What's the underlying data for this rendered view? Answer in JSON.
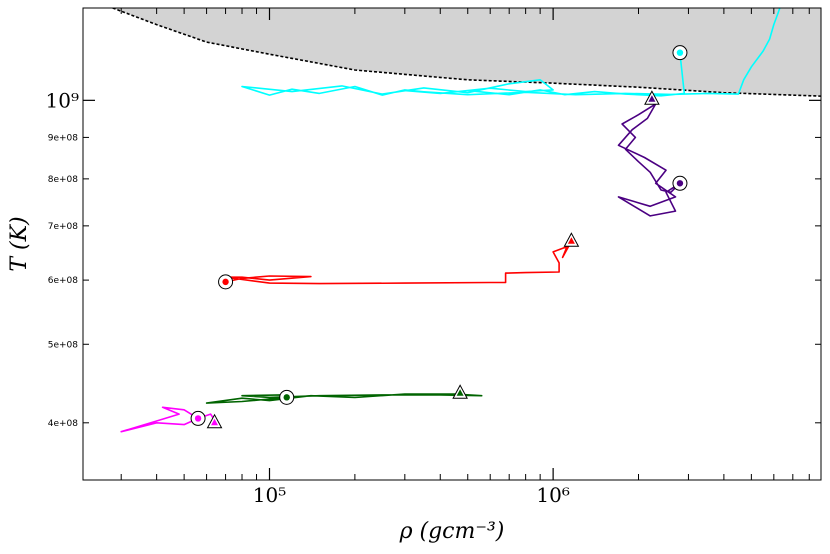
{
  "chart_data": {
    "type": "line",
    "title": "",
    "xlabel": "ρ (gcm⁻³)",
    "ylabel": "T (K)",
    "xscale": "log",
    "yscale": "log",
    "xlim": [
      22000,
      8800000
    ],
    "ylim": [
      340000000,
      1300000000
    ],
    "x_ticks": [
      {
        "value": 100000,
        "label": "10⁵"
      },
      {
        "value": 1000000,
        "label": "10⁶"
      }
    ],
    "y_ticks": [
      {
        "value": 1000000000,
        "label": "10⁹",
        "major": true
      },
      {
        "value": 900000000,
        "label": "9e+08",
        "major": false
      },
      {
        "value": 800000000,
        "label": "8e+08",
        "major": false
      },
      {
        "value": 700000000,
        "label": "7e+08",
        "major": false
      },
      {
        "value": 600000000,
        "label": "6e+08",
        "major": false
      },
      {
        "value": 500000000,
        "label": "5e+08",
        "major": false
      },
      {
        "value": 400000000,
        "label": "4e+08",
        "major": false
      }
    ],
    "grid": false,
    "shaded_region": {
      "color": "#d3d3d3",
      "boundary": [
        [
          28000,
          1300000000
        ],
        [
          40000,
          1240000000
        ],
        [
          60000,
          1180000000
        ],
        [
          100000,
          1140000000
        ],
        [
          200000,
          1090000000
        ],
        [
          500000,
          1060000000
        ],
        [
          1000000,
          1050000000
        ],
        [
          2000000,
          1038000000
        ],
        [
          4000000,
          1022000000
        ],
        [
          8800000,
          1012000000
        ]
      ]
    },
    "series": [
      {
        "color": "#00ffff",
        "path": [
          [
            2800000,
            1145000000
          ],
          [
            2900000,
            1020000000
          ],
          [
            2400000,
            1013000000
          ],
          [
            1800000,
            1018000000
          ],
          [
            1400000,
            1025000000
          ],
          [
            1100000,
            1016000000
          ],
          [
            900000,
            1030000000
          ],
          [
            700000,
            1016000000
          ],
          [
            500000,
            1028000000
          ],
          [
            400000,
            1020000000
          ],
          [
            300000,
            1030000000
          ],
          [
            250000,
            1015000000
          ],
          [
            200000,
            1040000000
          ],
          [
            150000,
            1020000000
          ],
          [
            120000,
            1032000000
          ],
          [
            100000,
            1015000000
          ],
          [
            80000,
            1040000000
          ],
          [
            120000,
            1025000000
          ],
          [
            180000,
            1042000000
          ],
          [
            250000,
            1018000000
          ],
          [
            350000,
            1036000000
          ],
          [
            500000,
            1022000000
          ],
          [
            700000,
            1048000000
          ],
          [
            900000,
            1060000000
          ],
          [
            1000000,
            1030000000
          ],
          [
            800000,
            1025000000
          ],
          [
            600000,
            1035000000
          ],
          [
            400000,
            1020000000
          ],
          [
            300000,
            1028000000
          ],
          [
            500000,
            1016000000
          ],
          [
            800000,
            1023000000
          ],
          [
            1200000,
            1016000000
          ],
          [
            1800000,
            1020000000
          ],
          [
            2600000,
            1017000000
          ],
          [
            3500000,
            1020000000
          ],
          [
            4500000,
            1018000000
          ],
          [
            4700000,
            1060000000
          ],
          [
            5000000,
            1100000000
          ],
          [
            5500000,
            1150000000
          ],
          [
            5800000,
            1190000000
          ],
          [
            6000000,
            1240000000
          ],
          [
            6200000,
            1280000000
          ],
          [
            6300000,
            1300000000
          ]
        ],
        "start_marker": [
          2800000,
          1145000000
        ],
        "end_marker": null
      },
      {
        "color": "#4b0082",
        "path": [
          [
            2800000,
            790000000
          ],
          [
            2600000,
            770000000
          ],
          [
            2400000,
            775000000
          ],
          [
            2200000,
            815000000
          ],
          [
            2000000,
            840000000
          ],
          [
            1800000,
            870000000
          ],
          [
            1950000,
            900000000
          ],
          [
            1750000,
            935000000
          ],
          [
            2000000,
            960000000
          ],
          [
            2300000,
            990000000
          ],
          [
            2150000,
            950000000
          ],
          [
            1900000,
            920000000
          ],
          [
            1700000,
            880000000
          ],
          [
            2100000,
            850000000
          ],
          [
            2500000,
            820000000
          ],
          [
            2300000,
            790000000
          ],
          [
            2700000,
            760000000
          ],
          [
            2200000,
            740000000
          ],
          [
            1700000,
            760000000
          ],
          [
            2200000,
            720000000
          ],
          [
            2700000,
            730000000
          ],
          [
            2500000,
            770000000
          ],
          [
            2800000,
            790000000
          ]
        ],
        "start_marker": [
          2800000,
          790000000
        ],
        "end_marker": [
          2230000,
          1003000000
        ]
      },
      {
        "color": "#ff0000",
        "path": [
          [
            70000,
            597000000
          ],
          [
            80000,
            603000000
          ],
          [
            100000,
            607000000
          ],
          [
            140000,
            606000000
          ],
          [
            100000,
            600000000
          ],
          [
            80000,
            605000000
          ],
          [
            70000,
            605000000
          ],
          [
            100000,
            595000000
          ],
          [
            150000,
            594000000
          ],
          [
            300000,
            595000000
          ],
          [
            600000,
            596000000
          ],
          [
            680000,
            596000000
          ],
          [
            680000,
            612000000
          ],
          [
            800000,
            613000000
          ],
          [
            1050000,
            614000000
          ],
          [
            1050000,
            630000000
          ],
          [
            1000000,
            650000000
          ],
          [
            1120000,
            660000000
          ],
          [
            1080000,
            640000000
          ],
          [
            1160000,
            670000000
          ]
        ],
        "start_marker": [
          70000,
          597000000
        ],
        "end_marker": [
          1160000,
          670000000
        ]
      },
      {
        "color": "#006400",
        "path": [
          [
            115000,
            430000000
          ],
          [
            100000,
            428000000
          ],
          [
            80000,
            425000000
          ],
          [
            60000,
            423000000
          ],
          [
            80000,
            429000000
          ],
          [
            100000,
            426000000
          ],
          [
            140000,
            432000000
          ],
          [
            200000,
            430000000
          ],
          [
            300000,
            434000000
          ],
          [
            450000,
            434000000
          ],
          [
            560000,
            432000000
          ],
          [
            400000,
            433000000
          ],
          [
            250000,
            433000000
          ],
          [
            150000,
            432000000
          ],
          [
            100000,
            430000000
          ],
          [
            80000,
            432000000
          ],
          [
            110000,
            433000000
          ],
          [
            115000,
            430000000
          ]
        ],
        "start_marker": [
          115000,
          430000000
        ],
        "end_marker": [
          470000,
          435000000
        ]
      },
      {
        "color": "#ff00ff",
        "path": [
          [
            56000,
            405000000
          ],
          [
            50000,
            398000000
          ],
          [
            40000,
            400000000
          ],
          [
            30000,
            390000000
          ],
          [
            40000,
            402000000
          ],
          [
            48000,
            410000000
          ],
          [
            42000,
            418000000
          ],
          [
            50000,
            415000000
          ],
          [
            56000,
            405000000
          ],
          [
            62000,
            410000000
          ],
          [
            65000,
            400000000
          ]
        ],
        "start_marker": [
          56000,
          405000000
        ],
        "end_marker": [
          64000,
          400000000
        ]
      }
    ]
  }
}
